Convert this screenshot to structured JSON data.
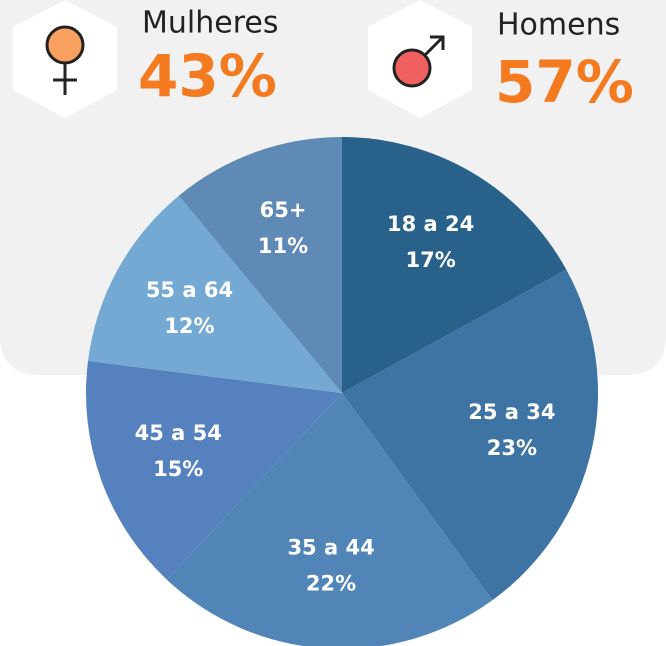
{
  "stats": [
    {
      "label": "Mulheres",
      "value": "43%"
    },
    {
      "label": "Homens",
      "value": "57%"
    }
  ],
  "chart_data": {
    "type": "pie",
    "categories": [
      "18 a 24",
      "25 a 34",
      "35 a 44",
      "45 a 54",
      "55 a 64",
      "65+"
    ],
    "values": [
      17,
      23,
      22,
      15,
      12,
      11
    ],
    "value_labels": [
      "17%",
      "23%",
      "22%",
      "15%",
      "12%",
      "11%"
    ],
    "colors": [
      "#28628a",
      "#3d74a3",
      "#5185b8",
      "#5582bf",
      "#74a9d3",
      "#5f8ab5"
    ]
  }
}
